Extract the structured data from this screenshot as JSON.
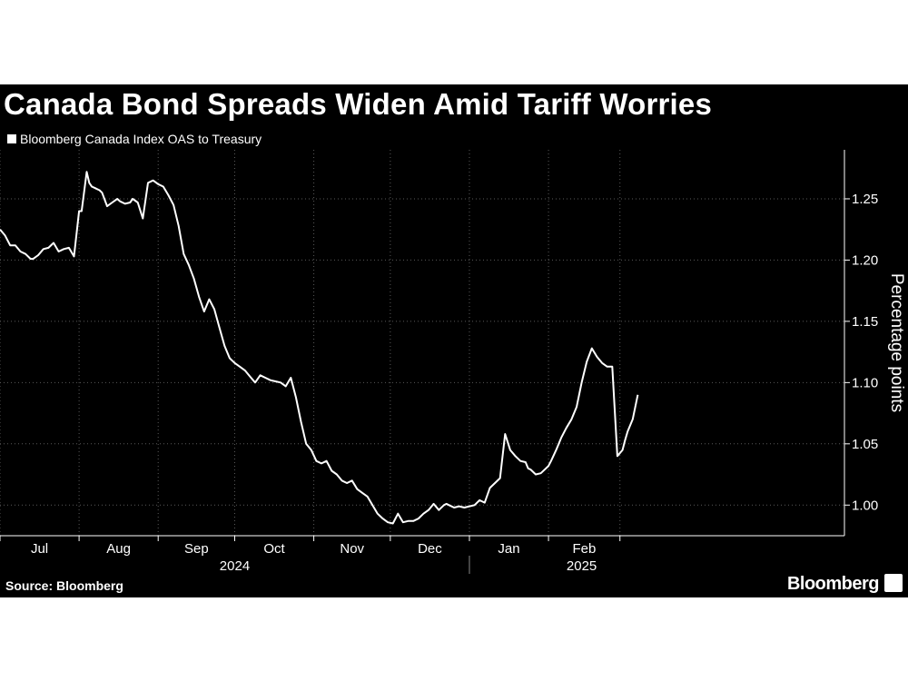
{
  "header": {
    "title": "Canada Bond Spreads Widen Amid Tariff Worries",
    "legend_label": "Bloomberg Canada Index OAS to Treasury"
  },
  "footer": {
    "source": "Source: Bloomberg",
    "brand": "Bloomberg",
    "brand_icon": "bloomberg-chart-icon"
  },
  "colors": {
    "background": "#000000",
    "line": "#ffffff",
    "grid": "#5a5a5a"
  },
  "chart_data": {
    "type": "line",
    "title": "Canada Bond Spreads Widen Amid Tariff Worries",
    "ylabel": "Percentage points",
    "xlabel": "",
    "ylim": [
      0.975,
      1.29
    ],
    "y_ticks": [
      1.0,
      1.05,
      1.1,
      1.15,
      1.2,
      1.25
    ],
    "y_tick_labels": [
      "1.00",
      "1.05",
      "1.10",
      "1.15",
      "1.20",
      "1.25"
    ],
    "x_range": [
      0,
      331
    ],
    "month_boundaries": [
      0,
      31,
      62,
      92,
      123,
      153,
      184,
      215,
      243
    ],
    "x_month_labels": [
      {
        "label": "Jul",
        "x": 15.5
      },
      {
        "label": "Aug",
        "x": 46.5
      },
      {
        "label": "Sep",
        "x": 77
      },
      {
        "label": "Oct",
        "x": 107.5
      },
      {
        "label": "Nov",
        "x": 138
      },
      {
        "label": "Dec",
        "x": 168.5
      },
      {
        "label": "Jan",
        "x": 199.5
      },
      {
        "label": "Feb",
        "x": 229
      }
    ],
    "x_year_labels": [
      {
        "label": "2024",
        "x": 92
      },
      {
        "label": "2025",
        "x": 228
      }
    ],
    "year_divider_x": 184,
    "grid": true,
    "legend": "top-left",
    "series": [
      {
        "name": "Bloomberg Canada Index OAS to Treasury",
        "x": [
          0,
          2,
          4,
          6,
          8,
          10,
          12,
          13,
          15,
          17,
          19,
          21,
          23,
          25,
          27,
          29,
          31,
          32,
          34,
          35,
          36,
          37,
          38,
          39,
          40,
          42,
          44,
          46,
          47,
          49,
          51,
          52,
          54,
          56,
          58,
          60,
          62,
          64,
          66,
          68,
          70,
          72,
          74,
          76,
          78,
          80,
          82,
          84,
          86,
          88,
          90,
          92,
          94,
          96,
          98,
          100,
          102,
          104,
          106,
          108,
          110,
          112,
          114,
          116,
          118,
          120,
          122,
          124,
          126,
          128,
          130,
          132,
          134,
          136,
          138,
          140,
          142,
          144,
          146,
          148,
          150,
          152,
          154,
          156,
          158,
          160,
          162,
          164,
          166,
          168,
          170,
          172,
          174,
          175,
          176,
          178,
          180,
          182,
          184,
          186,
          188,
          190,
          192,
          194,
          196,
          198,
          200,
          202,
          204,
          206,
          207,
          208,
          210,
          212,
          214,
          215,
          216,
          218,
          220,
          222,
          224,
          226,
          228,
          230,
          232,
          234,
          236,
          238,
          240,
          242,
          244,
          245,
          246,
          248,
          250
        ],
        "values": [
          1.225,
          1.22,
          1.212,
          1.212,
          1.207,
          1.205,
          1.201,
          1.201,
          1.204,
          1.209,
          1.21,
          1.214,
          1.207,
          1.209,
          1.21,
          1.203,
          1.24,
          1.24,
          1.272,
          1.263,
          1.26,
          1.259,
          1.258,
          1.257,
          1.255,
          1.244,
          1.247,
          1.25,
          1.248,
          1.246,
          1.247,
          1.25,
          1.247,
          1.234,
          1.263,
          1.265,
          1.262,
          1.26,
          1.253,
          1.245,
          1.228,
          1.205,
          1.196,
          1.185,
          1.17,
          1.158,
          1.168,
          1.16,
          1.145,
          1.13,
          1.12,
          1.116,
          1.113,
          1.11,
          1.105,
          1.1,
          1.106,
          1.104,
          1.102,
          1.101,
          1.1,
          1.097,
          1.104,
          1.088,
          1.068,
          1.05,
          1.045,
          1.036,
          1.034,
          1.036,
          1.028,
          1.025,
          1.02,
          1.018,
          1.02,
          1.013,
          1.01,
          1.007,
          1.0,
          0.993,
          0.989,
          0.986,
          0.985,
          0.993,
          0.986,
          0.987,
          0.987,
          0.989,
          0.993,
          0.996,
          1.001,
          0.996,
          1.0,
          1.001,
          1.0,
          0.998,
          0.999,
          0.998,
          0.999,
          1.0,
          1.004,
          1.002,
          1.014,
          1.018,
          1.022,
          1.058,
          1.045,
          1.04,
          1.036,
          1.035,
          1.03,
          1.029,
          1.025,
          1.026,
          1.03,
          1.032,
          1.036,
          1.045,
          1.055,
          1.063,
          1.07,
          1.08,
          1.1,
          1.117,
          1.128,
          1.121,
          1.116,
          1.113,
          1.113,
          1.04,
          1.045,
          1.053,
          1.06,
          1.07,
          1.09
        ]
      }
    ]
  }
}
